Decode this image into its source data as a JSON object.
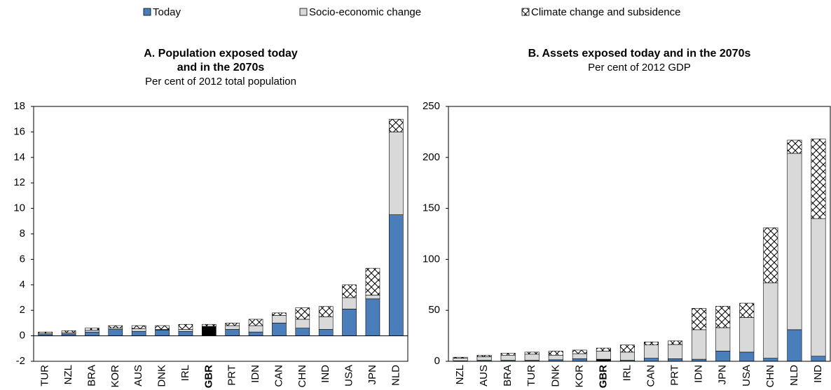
{
  "chart_data": [
    {
      "type": "bar",
      "stacked": true,
      "title_lines": [
        "A. Population exposed today",
        "and in the 2070s"
      ],
      "subtitle": "Per cent of 2012 total population",
      "categories": [
        "TUR",
        "NZL",
        "BRA",
        "KOR",
        "AUS",
        "DNK",
        "IRL",
        "GBR",
        "PRT",
        "IDN",
        "CAN",
        "CHN",
        "IND",
        "USA",
        "JPN",
        "NLD"
      ],
      "highlight": "GBR",
      "highlight_color": "#000000",
      "series": [
        {
          "name": "Today",
          "color": "#4a7ebb",
          "values": [
            0.1,
            0.15,
            0.3,
            0.5,
            0.35,
            0.45,
            0.35,
            0.7,
            0.5,
            0.3,
            1.0,
            0.6,
            0.5,
            2.1,
            2.9,
            9.5
          ]
        },
        {
          "name": "Socio-economic change",
          "color": "#d9d9d9",
          "values": [
            0.1,
            0.1,
            0.15,
            0.1,
            0.2,
            0.05,
            0.15,
            0.05,
            0.3,
            0.5,
            0.6,
            0.7,
            1.0,
            0.9,
            0.3,
            6.5
          ]
        },
        {
          "name": "Climate change and subsidence",
          "color": "#ffffff",
          "pattern": "cross",
          "values": [
            0.1,
            0.15,
            0.15,
            0.2,
            0.25,
            0.3,
            0.4,
            0.15,
            0.2,
            0.5,
            0.2,
            0.9,
            0.8,
            1.0,
            2.1,
            1.0
          ]
        }
      ],
      "ylim": [
        -2,
        18
      ],
      "yticks": [
        -2,
        0,
        2,
        4,
        6,
        8,
        10,
        12,
        14,
        16,
        18
      ]
    },
    {
      "type": "bar",
      "stacked": true,
      "title_lines": [
        "B. Assets exposed today and in the 2070s"
      ],
      "subtitle": "Per cent of 2012 GDP",
      "categories": [
        "NZL",
        "AUS",
        "BRA",
        "TUR",
        "DNK",
        "KOR",
        "GBR",
        "IRL",
        "CAN",
        "PRT",
        "IDN",
        "JPN",
        "USA",
        "CHN",
        "NLD",
        "IND"
      ],
      "highlight": "GBR",
      "highlight_color": "#000000",
      "series": [
        {
          "color": "#4a7ebb",
          "values": [
            0.5,
            1,
            1,
            1,
            1.5,
            2.5,
            2,
            1,
            3,
            2.5,
            2,
            10,
            9,
            3,
            31,
            5
          ]
        },
        {
          "color": "#d9d9d9",
          "values": [
            2.5,
            3.5,
            5,
            6,
            4.5,
            5,
            8,
            8,
            13,
            14,
            29,
            23,
            34,
            74,
            173,
            135
          ]
        },
        {
          "color": "#ffffff",
          "pattern": "cross",
          "values": [
            1,
            1.5,
            2,
            2,
            4,
            3.5,
            3,
            7,
            3,
            3.5,
            21,
            21,
            14,
            54,
            13,
            78
          ]
        }
      ],
      "ylim": [
        0,
        250
      ],
      "yticks": [
        0,
        50,
        100,
        150,
        200,
        250
      ]
    }
  ]
}
